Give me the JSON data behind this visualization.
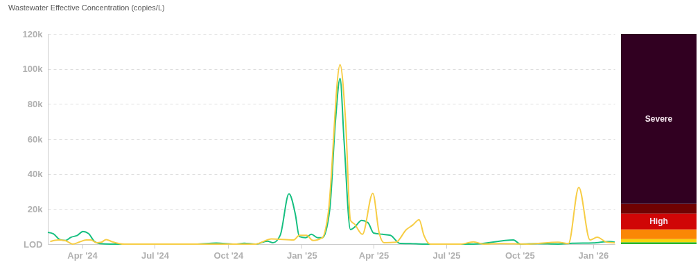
{
  "chart_data": [
    {
      "type": "line",
      "title": "Wastewater Effective Concentration (copies/L)",
      "xlim": [
        "2024-02-18",
        "2026-01-28"
      ],
      "xticks": [
        {
          "value": "2024-04-01",
          "label": "Apr '24"
        },
        {
          "value": "2024-07-01",
          "label": "Jul '24"
        },
        {
          "value": "2024-10-01",
          "label": "Oct '24"
        },
        {
          "value": "2025-01-01",
          "label": "Jan '25"
        },
        {
          "value": "2025-04-01",
          "label": "Apr '25"
        },
        {
          "value": "2025-07-01",
          "label": "Jul '25"
        },
        {
          "value": "2025-10-01",
          "label": "Oct '25"
        },
        {
          "value": "2026-01-01",
          "label": "Jan '26"
        }
      ],
      "ylim": [
        0,
        120000
      ],
      "yticks": [
        {
          "value": 0,
          "label": "LOD"
        },
        {
          "value": 20000,
          "label": "20k"
        },
        {
          "value": 40000,
          "label": "40k"
        },
        {
          "value": 60000,
          "label": "60k"
        },
        {
          "value": 80000,
          "label": "80k"
        },
        {
          "value": 100000,
          "label": "100k"
        },
        {
          "value": 120000,
          "label": "120k"
        }
      ],
      "grid": "y",
      "series": [
        {
          "color": "#16bf80",
          "x": [
            "2024-02-18",
            "2024-02-25",
            "2024-03-04",
            "2024-03-11",
            "2024-03-18",
            "2024-03-26",
            "2024-04-02",
            "2024-04-09",
            "2024-04-16",
            "2024-04-23",
            "2024-05-06",
            "2024-08-21",
            "2024-09-16",
            "2024-10-09",
            "2024-10-21",
            "2024-11-04",
            "2024-11-19",
            "2024-11-26",
            "2024-12-05",
            "2024-12-16",
            "2024-12-24",
            "2024-12-29",
            "2025-01-06",
            "2025-01-13",
            "2025-01-21",
            "2025-01-27",
            "2025-02-05",
            "2025-02-12",
            "2025-02-18",
            "2025-02-23",
            "2025-03-03",
            "2025-03-08",
            "2025-03-17",
            "2025-03-25",
            "2025-04-01",
            "2025-04-12",
            "2025-04-22",
            "2025-05-04",
            "2025-05-17",
            "2025-06-03",
            "2025-08-04",
            "2025-09-23",
            "2025-10-02",
            "2025-10-23",
            "2025-11-18",
            "2025-12-06",
            "2026-01-01",
            "2026-01-21",
            "2026-01-28"
          ],
          "values": [
            6700,
            5900,
            2600,
            2100,
            3900,
            5000,
            7200,
            6000,
            1700,
            300,
            0,
            0,
            600,
            0,
            500,
            0,
            1700,
            800,
            5000,
            28700,
            17000,
            4300,
            3700,
            5600,
            3700,
            3700,
            19500,
            69000,
            94500,
            59000,
            8300,
            9600,
            13500,
            12200,
            6300,
            5600,
            5000,
            400,
            300,
            0,
            0,
            2400,
            0,
            300,
            0,
            500,
            700,
            1500,
            1100
          ]
        },
        {
          "color": "#f7cd45",
          "x": [
            "2024-02-21",
            "2024-03-02",
            "2024-03-11",
            "2024-03-20",
            "2024-03-28",
            "2024-04-06",
            "2024-04-12",
            "2024-04-19",
            "2024-04-25",
            "2024-05-01",
            "2024-05-09",
            "2024-05-24",
            "2024-11-04",
            "2024-11-24",
            "2024-12-22",
            "2024-12-29",
            "2025-01-07",
            "2025-01-15",
            "2025-01-27",
            "2025-02-03",
            "2025-02-18",
            "2025-02-25",
            "2025-03-03",
            "2025-03-08",
            "2025-03-18",
            "2025-03-31",
            "2025-04-08",
            "2025-04-14",
            "2025-04-29",
            "2025-05-12",
            "2025-05-20",
            "2025-05-28",
            "2025-06-03",
            "2025-06-11",
            "2025-07-19",
            "2025-08-04",
            "2025-08-17",
            "2025-09-06",
            "2025-10-11",
            "2025-11-18",
            "2025-12-01",
            "2025-12-14",
            "2025-12-28",
            "2026-01-06",
            "2026-01-18",
            "2026-01-28"
          ],
          "values": [
            1500,
            2400,
            2000,
            0,
            1100,
            2400,
            2400,
            800,
            1100,
            2600,
            1300,
            0,
            0,
            3000,
            2400,
            5000,
            5000,
            2100,
            3700,
            17000,
            102400,
            69500,
            13500,
            11500,
            5600,
            29000,
            6300,
            800,
            1100,
            8300,
            10900,
            13900,
            5000,
            0,
            0,
            1300,
            0,
            300,
            0,
            1100,
            300,
            32400,
            2400,
            3900,
            1100,
            700
          ]
        }
      ]
    },
    {
      "type": "bar",
      "stacked": true,
      "categories": [
        null
      ],
      "ylim": [
        0,
        120000
      ],
      "tick_labels": false,
      "series": [
        {
          "color": "#2bb52b",
          "values": [
            1100
          ]
        },
        {
          "color": "#f5d50f",
          "values": [
            1800
          ]
        },
        {
          "color": "#fa8705",
          "values": [
            5500
          ]
        },
        {
          "name": "High",
          "color": "#d00606",
          "values": [
            9100
          ]
        },
        {
          "color": "#700202",
          "values": [
            5500
          ]
        },
        {
          "name": "Severe",
          "color": "#310021",
          "values": [
            97000
          ]
        }
      ]
    }
  ]
}
